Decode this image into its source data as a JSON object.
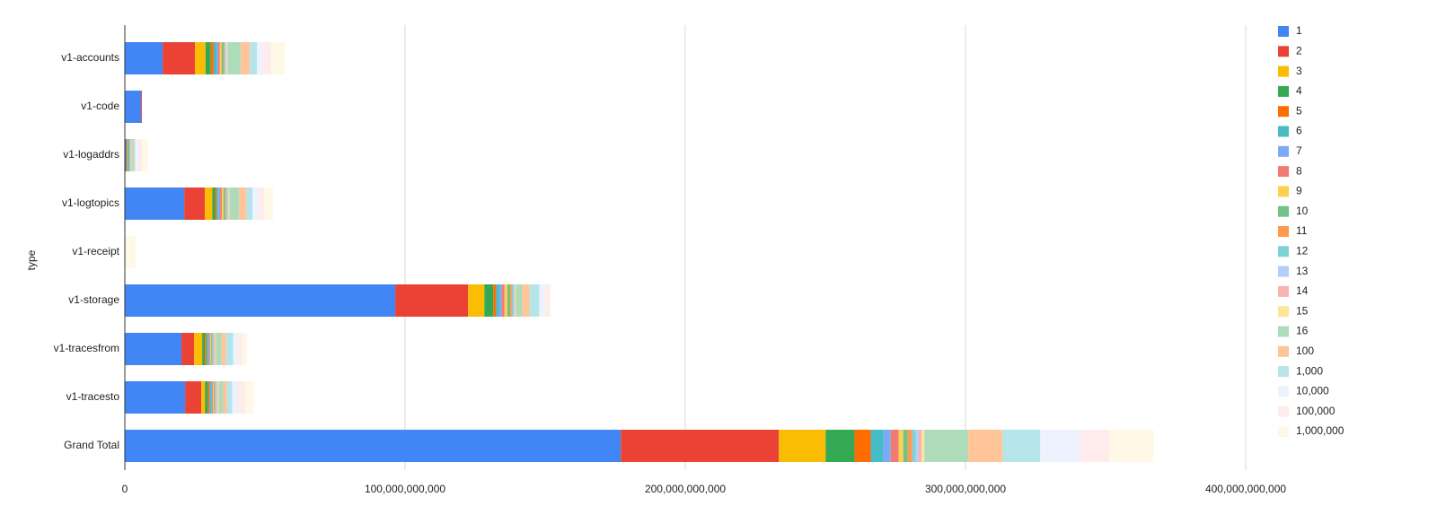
{
  "chart_data": {
    "type": "stacked-barh",
    "y_label": "type",
    "categories": [
      "v1-accounts",
      "v1-code",
      "v1-logaddrs",
      "v1-logtopics",
      "v1-receipt",
      "v1-storage",
      "v1-tracesfrom",
      "v1-tracesto",
      "Grand Total"
    ],
    "xlim": [
      0,
      400000000000
    ],
    "xticks": [
      0,
      {
        "value": 100000000000,
        "label": "100,000,000,000"
      },
      {
        "value": 200000000000,
        "label": "200,000,000,000"
      },
      {
        "value": 300000000000,
        "label": "300,000,000,000"
      },
      {
        "value": 400000000000,
        "label": "400,000,000,000"
      }
    ],
    "grid": true,
    "legend": "right",
    "series": [
      {
        "name": "1",
        "color": "#4285f4",
        "values": [
          13500000000,
          5800000000,
          500000000,
          21200000000,
          0,
          96500000000,
          20200000000,
          21500000000,
          177000000000
        ]
      },
      {
        "name": "2",
        "color": "#ea4335",
        "values": [
          11500000000,
          300000000,
          200000000,
          7400000000,
          0,
          26000000000,
          4500000000,
          5800000000,
          56400000000
        ]
      },
      {
        "name": "3",
        "color": "#fbbc04",
        "values": [
          3800000000,
          0,
          200000000,
          2600000000,
          0,
          5800000000,
          2900000000,
          1300000000,
          16700000000
        ]
      },
      {
        "name": "4",
        "color": "#34a853",
        "values": [
          1900000000,
          0,
          200000000,
          1000000000,
          0,
          3200000000,
          1000000000,
          1000000000,
          10300000000
        ]
      },
      {
        "name": "5",
        "color": "#ff6d01",
        "values": [
          1000000000,
          0,
          100000000,
          600000000,
          0,
          1000000000,
          600000000,
          600000000,
          5800000000
        ]
      },
      {
        "name": "6",
        "color": "#46bdc6",
        "values": [
          1000000000,
          0,
          300000000,
          600000000,
          0,
          1000000000,
          600000000,
          600000000,
          4500000000
        ]
      },
      {
        "name": "7",
        "color": "#7baaf7",
        "values": [
          600000000,
          0,
          100000000,
          600000000,
          0,
          1000000000,
          300000000,
          300000000,
          2600000000
        ]
      },
      {
        "name": "8",
        "color": "#f07b72",
        "values": [
          600000000,
          0,
          100000000,
          600000000,
          0,
          1000000000,
          300000000,
          300000000,
          2900000000
        ]
      },
      {
        "name": "9",
        "color": "#fcd04f",
        "values": [
          600000000,
          0,
          100000000,
          600000000,
          0,
          1000000000,
          300000000,
          300000000,
          1600000000
        ]
      },
      {
        "name": "10",
        "color": "#71c287",
        "values": [
          600000000,
          0,
          100000000,
          600000000,
          0,
          1000000000,
          300000000,
          300000000,
          1600000000
        ]
      },
      {
        "name": "11",
        "color": "#ff994d",
        "values": [
          300000000,
          0,
          100000000,
          300000000,
          0,
          600000000,
          300000000,
          300000000,
          1600000000
        ]
      },
      {
        "name": "12",
        "color": "#7ed1d7",
        "values": [
          300000000,
          0,
          100000000,
          300000000,
          0,
          600000000,
          300000000,
          300000000,
          1300000000
        ]
      },
      {
        "name": "13",
        "color": "#b3cefb",
        "values": [
          300000000,
          0,
          100000000,
          300000000,
          0,
          300000000,
          300000000,
          300000000,
          1000000000
        ]
      },
      {
        "name": "14",
        "color": "#f7b4ae",
        "values": [
          300000000,
          0,
          100000000,
          300000000,
          0,
          300000000,
          300000000,
          300000000,
          1000000000
        ]
      },
      {
        "name": "15",
        "color": "#fde49b",
        "values": [
          300000000,
          0,
          100000000,
          300000000,
          0,
          300000000,
          300000000,
          300000000,
          1000000000
        ]
      },
      {
        "name": "16",
        "color": "#aedcba",
        "values": [
          4800000000,
          0,
          500000000,
          3500000000,
          0,
          2200000000,
          2000000000,
          1600000000,
          15700000000
        ]
      },
      {
        "name": "100",
        "color": "#ffc599",
        "values": [
          3200000000,
          0,
          300000000,
          2600000000,
          0,
          2600000000,
          1600000000,
          1300000000,
          12200000000
        ]
      },
      {
        "name": "1,000",
        "color": "#b5e5e8",
        "values": [
          2600000000,
          0,
          500000000,
          2200000000,
          0,
          3500000000,
          2600000000,
          1900000000,
          13500000000
        ]
      },
      {
        "name": "10,000",
        "color": "#ecf3fe",
        "values": [
          1900000000,
          0,
          1000000000,
          1900000000,
          0,
          1900000000,
          1300000000,
          1900000000,
          13800000000
        ]
      },
      {
        "name": "100,000",
        "color": "#fdeceb",
        "values": [
          3200000000,
          0,
          1500000000,
          2200000000,
          0,
          1900000000,
          1900000000,
          2900000000,
          10900000000
        ]
      },
      {
        "name": "1,000,000",
        "color": "#fff8e6",
        "values": [
          4800000000,
          0,
          2000000000,
          3200000000,
          3800000000,
          300000000,
          1600000000,
          2900000000,
          15700000000
        ]
      }
    ]
  }
}
